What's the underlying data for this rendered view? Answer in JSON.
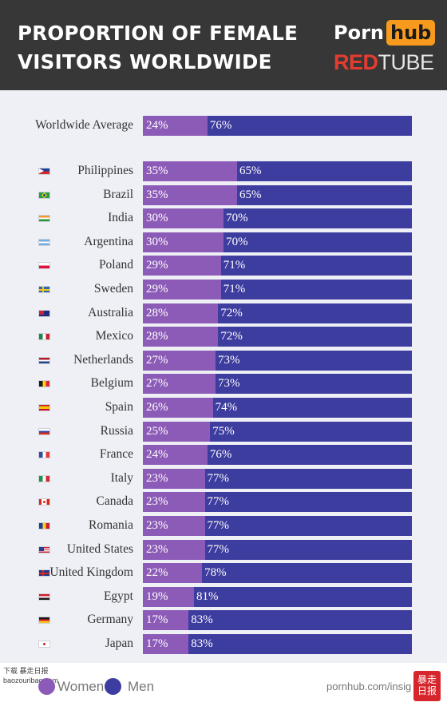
{
  "header": {
    "title": "PROPORTION OF FEMALE VISITORS WORLDWIDE",
    "logo_primary_a": "Porn",
    "logo_primary_b": "hub",
    "logo_secondary_a": "RED",
    "logo_secondary_b": "TUBE"
  },
  "chart_data": {
    "type": "bar",
    "orientation": "horizontal",
    "stacked": true,
    "percent_suffix": "%",
    "categories": [
      "Worldwide Average",
      "Philippines",
      "Brazil",
      "India",
      "Argentina",
      "Poland",
      "Sweden",
      "Australia",
      "Mexico",
      "Netherlands",
      "Belgium",
      "Spain",
      "Russia",
      "France",
      "Italy",
      "Canada",
      "Romania",
      "United States",
      "United Kingdom",
      "Egypt",
      "Germany",
      "Japan"
    ],
    "series": [
      {
        "name": "Women",
        "color": "#8c5bb7",
        "values": [
          24,
          35,
          35,
          30,
          30,
          29,
          29,
          28,
          28,
          27,
          27,
          26,
          25,
          24,
          23,
          23,
          23,
          23,
          22,
          19,
          17,
          17
        ]
      },
      {
        "name": "Men",
        "color": "#3d3c9f",
        "values": [
          76,
          65,
          65,
          70,
          70,
          71,
          71,
          72,
          72,
          73,
          73,
          74,
          75,
          76,
          77,
          77,
          77,
          77,
          78,
          81,
          83,
          83
        ]
      }
    ],
    "xlim": [
      0,
      100
    ],
    "legend": "bottom-left",
    "grid": false
  },
  "flags": [
    {
      "country": "Philippines",
      "icon": "flag-philippines",
      "stripes": [
        "#1b3f9b",
        "#d6262b"
      ],
      "dir": "h",
      "tri": "#ffffff"
    },
    {
      "country": "Brazil",
      "icon": "flag-brazil",
      "stripes": [
        "#229e45"
      ],
      "dir": "h",
      "diamond": "#f8d21b",
      "dot": "#1f3e93"
    },
    {
      "country": "India",
      "icon": "flag-india",
      "stripes": [
        "#f59a33",
        "#ffffff",
        "#239638"
      ],
      "dir": "h"
    },
    {
      "country": "Argentina",
      "icon": "flag-argentina",
      "stripes": [
        "#74acdf",
        "#ffffff",
        "#74acdf"
      ],
      "dir": "h"
    },
    {
      "country": "Poland",
      "icon": "flag-poland",
      "stripes": [
        "#ffffff",
        "#dc143c"
      ],
      "dir": "h"
    },
    {
      "country": "Sweden",
      "icon": "flag-sweden",
      "stripes": [
        "#2a69ad"
      ],
      "dir": "h",
      "cross": "#f6c719"
    },
    {
      "country": "Australia",
      "icon": "flag-australia",
      "stripes": [
        "#1d2c7c"
      ],
      "dir": "h",
      "canton": "#c9253a"
    },
    {
      "country": "Mexico",
      "icon": "flag-mexico",
      "stripes": [
        "#1b8a4a",
        "#ffffff",
        "#d02030"
      ],
      "dir": "v"
    },
    {
      "country": "Netherlands",
      "icon": "flag-netherlands",
      "stripes": [
        "#ae1c28",
        "#ffffff",
        "#21468b"
      ],
      "dir": "h"
    },
    {
      "country": "Belgium",
      "icon": "flag-belgium",
      "stripes": [
        "#1a1a1a",
        "#f8d21b",
        "#e32636"
      ],
      "dir": "v"
    },
    {
      "country": "Spain",
      "icon": "flag-spain",
      "stripes": [
        "#c8102e",
        "#f8c300",
        "#f8c300",
        "#c8102e"
      ],
      "dir": "h"
    },
    {
      "country": "Russia",
      "icon": "flag-russia",
      "stripes": [
        "#ffffff",
        "#2a49a8",
        "#d52b1e"
      ],
      "dir": "h"
    },
    {
      "country": "France",
      "icon": "flag-france",
      "stripes": [
        "#2f4da0",
        "#ffffff",
        "#e33b3b"
      ],
      "dir": "v"
    },
    {
      "country": "Italy",
      "icon": "flag-italy",
      "stripes": [
        "#1b9547",
        "#ffffff",
        "#d32a36"
      ],
      "dir": "v"
    },
    {
      "country": "Canada",
      "icon": "flag-canada",
      "stripes": [
        "#d52b1e",
        "#ffffff",
        "#ffffff",
        "#d52b1e"
      ],
      "dir": "v",
      "dot": "#d52b1e"
    },
    {
      "country": "Romania",
      "icon": "flag-romania",
      "stripes": [
        "#1b3f9b",
        "#f8d21b",
        "#cf1f2e"
      ],
      "dir": "v"
    },
    {
      "country": "United States",
      "icon": "flag-united-states",
      "stripes": [
        "#c8233a",
        "#ffffff",
        "#c8233a",
        "#ffffff",
        "#c8233a"
      ],
      "dir": "h",
      "canton": "#2a3f86"
    },
    {
      "country": "United Kingdom",
      "icon": "flag-united-kingdom",
      "stripes": [
        "#22338a"
      ],
      "dir": "h",
      "cross": "#d52b1e"
    },
    {
      "country": "Egypt",
      "icon": "flag-egypt",
      "stripes": [
        "#cf1f2e",
        "#ffffff",
        "#1a1a1a"
      ],
      "dir": "h"
    },
    {
      "country": "Germany",
      "icon": "flag-germany",
      "stripes": [
        "#1a1a1a",
        "#dd1f26",
        "#f8c91b"
      ],
      "dir": "h"
    },
    {
      "country": "Japan",
      "icon": "flag-japan",
      "stripes": [
        "#ffffff"
      ],
      "dir": "h",
      "dot": "#cf1f2e"
    }
  ],
  "footer": {
    "legend_women": "Women",
    "legend_men": "Men",
    "source": "pornhub.com/insig",
    "watermark_left": "下载 暴走日报 baozouribao.com",
    "watermark_right": "暴走日报"
  }
}
